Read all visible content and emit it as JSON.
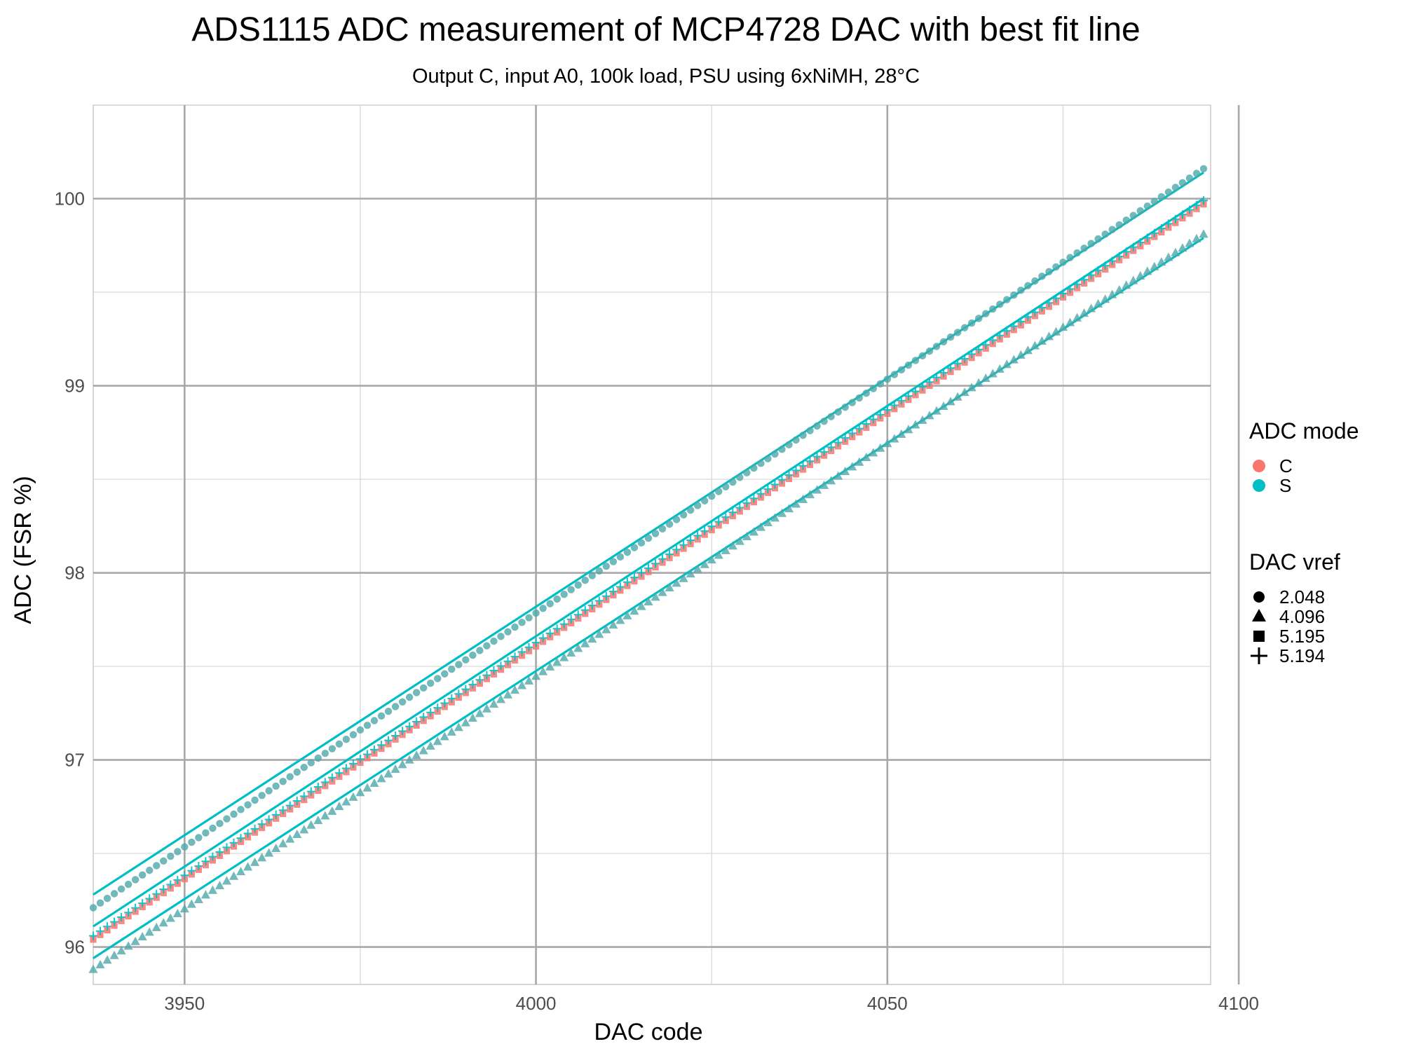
{
  "chart_data": {
    "type": "scatter",
    "title": "ADS1115 ADC measurement of MCP4728 DAC with best fit line",
    "subtitle": "Output C, input A0, 100k load, PSU using 6xNiMH, 28°C",
    "xlabel": "DAC code",
    "ylabel": "ADC (FSR %)",
    "xlim": [
      3937,
      4096
    ],
    "ylim": [
      95.8,
      100.5
    ],
    "x_ticks": [
      3950,
      4000,
      4050,
      4100
    ],
    "y_ticks": [
      96,
      97,
      98,
      99,
      100
    ],
    "grid": true,
    "x_start": 3937,
    "x_end": 4095,
    "legend_placement": "right",
    "legend_color": {
      "title": "ADC mode",
      "items": [
        {
          "label": "C",
          "color": "#F8766D"
        },
        {
          "label": "S",
          "color": "#00BFC4"
        }
      ]
    },
    "legend_shape": {
      "title": "DAC vref",
      "items": [
        {
          "label": "2.048",
          "shape": "circle"
        },
        {
          "label": "4.096",
          "shape": "triangle"
        },
        {
          "label": "5.195",
          "shape": "square"
        },
        {
          "label": "5.194",
          "shape": "plus"
        }
      ]
    },
    "series": [
      {
        "vref": "2.048",
        "shape": "circle",
        "mode": "C",
        "y_start": 96.21,
        "y_end": 100.16
      },
      {
        "vref": "2.048",
        "shape": "circle",
        "mode": "S",
        "y_start": 96.21,
        "y_end": 100.16
      },
      {
        "vref": "5.195",
        "shape": "square",
        "mode": "C",
        "y_start": 96.04,
        "y_end": 99.97
      },
      {
        "vref": "5.194",
        "shape": "plus",
        "mode": "S",
        "y_start": 96.06,
        "y_end": 99.99
      },
      {
        "vref": "4.096",
        "shape": "triangle",
        "mode": "C",
        "y_start": 95.88,
        "y_end": 99.81
      },
      {
        "vref": "4.096",
        "shape": "triangle",
        "mode": "S",
        "y_start": 95.88,
        "y_end": 99.81
      }
    ],
    "fit_lines": [
      {
        "color": "#00BFC4",
        "y_start": 96.28,
        "y_end": 100.14
      },
      {
        "color": "#00BFC4",
        "y_start": 96.11,
        "y_end": 100.0
      },
      {
        "color": "#00BFC4",
        "y_start": 95.94,
        "y_end": 99.79
      }
    ]
  }
}
